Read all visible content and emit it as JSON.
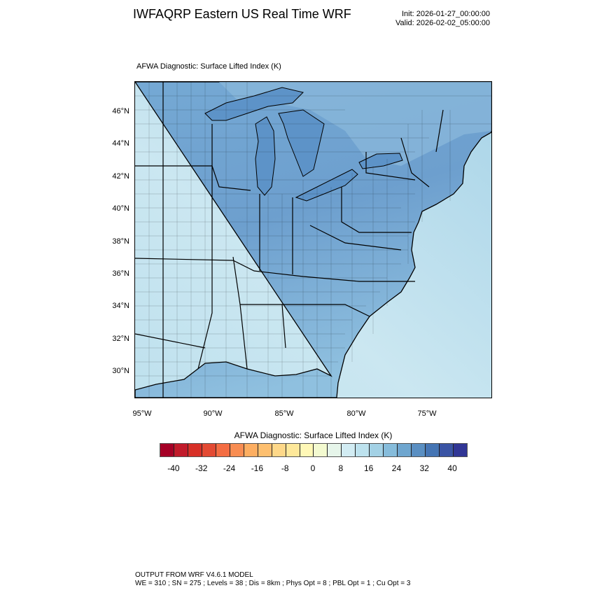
{
  "header": {
    "title": "IWFAQRP Eastern US Real Time WRF",
    "init": "Init: 2026-01-27_00:00:00",
    "valid": "Valid: 2026-02-02_05:00:00"
  },
  "map": {
    "title": "AFWA Diagnostic: Surface Lifted Index   (K)",
    "lat_labels": [
      "46°N",
      "44°N",
      "42°N",
      "40°N",
      "38°N",
      "36°N",
      "34°N",
      "32°N",
      "30°N"
    ],
    "lon_labels": [
      "95°W",
      "90°W",
      "85°W",
      "80°W",
      "75°W"
    ],
    "colors": {
      "land": "#7fb3d8",
      "land_light": "#a7d0e6",
      "ocean": "#bfe1ee",
      "ocean_light": "#d6eef5",
      "lakes": "#5d93c8"
    }
  },
  "colorbar": {
    "title": "AFWA Diagnostic: Surface Lifted Index  (K)",
    "labels": [
      "-40",
      "-32",
      "-24",
      "-16",
      "-8",
      "0",
      "8",
      "16",
      "24",
      "32",
      "40"
    ],
    "levels_min": -40,
    "levels_max": 40,
    "level_step": 4,
    "colors": [
      "#a50026",
      "#c11b2b",
      "#d73027",
      "#e34a33",
      "#f46d43",
      "#f88d52",
      "#fdae61",
      "#fdbf6f",
      "#fed889",
      "#fee89a",
      "#fff8b7",
      "#f3fad0",
      "#e6f5ea",
      "#d2ecf3",
      "#bde2ee",
      "#a3d1e5",
      "#86bcdb",
      "#6fa6cf",
      "#5a8fc2",
      "#4575b4",
      "#3a54a4",
      "#313695"
    ]
  },
  "footer": {
    "line1": "OUTPUT FROM WRF V4.6.1 MODEL",
    "line2": "WE = 310 ; SN = 275 ; Levels = 38 ; Dis = 8km ; Phys Opt = 8 ; PBL Opt = 1 ; Cu Opt = 3"
  }
}
